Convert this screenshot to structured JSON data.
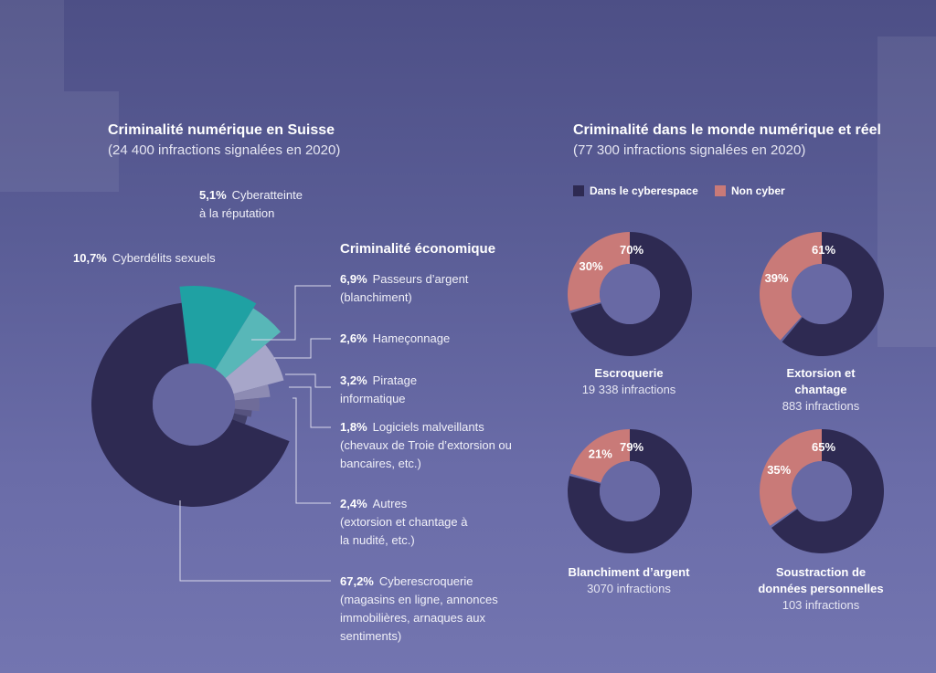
{
  "left": {
    "title": "Criminalité numérique en Suisse",
    "subtitle": "(24 400 infractions signalées en 2020)",
    "section_title": "Criminalité économique",
    "labels": [
      {
        "pct": "5,1%",
        "text": "Cyberatteinte",
        "text2": "à la réputation"
      },
      {
        "pct": "10,7%",
        "text": "Cyberdélits sexuels"
      },
      {
        "pct": "6,9%",
        "text": "Passeurs d’argent",
        "text2": "(blanchiment)"
      },
      {
        "pct": "2,6%",
        "text": "Hameçonnage"
      },
      {
        "pct": "3,2%",
        "text": "Piratage",
        "text2": "informatique"
      },
      {
        "pct": "1,8%",
        "text": "Logiciels malveillants",
        "text2": "(chevaux de Troie d’extorsion ou",
        "text3": "bancaires, etc.)"
      },
      {
        "pct": "2,4%",
        "text": "Autres",
        "text2": "(extorsion et chantage à",
        "text3": "la nudité, etc.)"
      },
      {
        "pct": "67,2%",
        "text": "Cyberescroquerie",
        "text2": "(magasins en ligne, annonces",
        "text3": "immobilières, arnaques aux",
        "text4": "sentiments)"
      }
    ]
  },
  "right": {
    "title": "Criminalité dans le monde numérique et réel",
    "subtitle": "(77 300 infractions signalées en 2020)",
    "legend": {
      "cyber": "Dans le cyberespace",
      "noncyber": "Non cyber"
    }
  },
  "colors": {
    "cyber": "#2e2a52",
    "noncyber": "#c97a78",
    "teal": "#1fa1a3",
    "teal_light": "#58b7b8"
  },
  "chart_data": [
    {
      "type": "pie",
      "title": "Criminalité numérique en Suisse",
      "subtitle": "(24 400 infractions signalées en 2020)",
      "categories": [
        "Cyberescroquerie",
        "Cyberdélits sexuels",
        "Cyberatteinte à la réputation",
        "Passeurs d’argent (blanchiment)",
        "Hameçonnage",
        "Piratage informatique",
        "Logiciels malveillants",
        "Autres"
      ],
      "values": [
        67.2,
        10.7,
        5.1,
        6.9,
        2.6,
        3.2,
        1.8,
        2.4
      ]
    },
    {
      "type": "pie",
      "title": "Criminalité dans le monde numérique et réel",
      "subtitle": "(77 300 infractions signalées en 2020)",
      "series_names": [
        "Dans le cyberespace",
        "Non cyber"
      ],
      "donuts": [
        {
          "name": "Escroquerie",
          "name2": "",
          "count": "19 338 infractions",
          "cyber": 70,
          "noncyber": 30,
          "cyber_label": "70%",
          "noncyber_label": "30%"
        },
        {
          "name": "Extorsion et",
          "name2": "chantage",
          "count": "883 infractions",
          "cyber": 61,
          "noncyber": 39,
          "cyber_label": "61%",
          "noncyber_label": "39%"
        },
        {
          "name": "Blanchiment d’argent",
          "name2": "",
          "count": "3070 infractions",
          "cyber": 79,
          "noncyber": 21,
          "cyber_label": "79%",
          "noncyber_label": "21%"
        },
        {
          "name": "Soustraction de",
          "name2": "données personnelles",
          "count": "103 infractions",
          "cyber": 65,
          "noncyber": 35,
          "cyber_label": "65%",
          "noncyber_label": "35%"
        }
      ]
    }
  ]
}
